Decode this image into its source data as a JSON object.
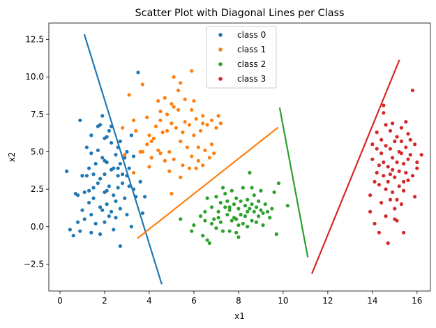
{
  "chart_data": {
    "type": "scatter",
    "title": "Scatter Plot with Diagonal Lines per Class",
    "xlabel": "x1",
    "ylabel": "x2",
    "xlim": [
      -0.5,
      16.6
    ],
    "ylim": [
      -4.3,
      13.6
    ],
    "xticks": [
      0,
      2,
      4,
      6,
      8,
      10,
      12,
      14,
      16
    ],
    "yticks": [
      -2.5,
      0.0,
      2.5,
      5.0,
      7.5,
      10.0,
      12.5
    ],
    "ytick_labels": [
      "−2.5",
      "0.0",
      "2.5",
      "5.0",
      "7.5",
      "10.0",
      "12.5"
    ],
    "legend": {
      "placement": "top-center"
    },
    "series": [
      {
        "name": "class 0",
        "color": "#1f77b4",
        "line": [
          [
            1.1,
            12.8
          ],
          [
            4.55,
            -3.8
          ]
        ],
        "points": [
          [
            0.3,
            3.7
          ],
          [
            0.45,
            -0.2
          ],
          [
            0.6,
            -0.6
          ],
          [
            0.7,
            2.2
          ],
          [
            0.8,
            2.1
          ],
          [
            0.8,
            0.3
          ],
          [
            0.9,
            -0.3
          ],
          [
            0.9,
            7.1
          ],
          [
            1.0,
            1.1
          ],
          [
            1.0,
            3.4
          ],
          [
            1.1,
            2.3
          ],
          [
            1.1,
            0.5
          ],
          [
            1.2,
            3.4
          ],
          [
            1.2,
            5.3
          ],
          [
            1.3,
            3.9
          ],
          [
            1.3,
            1.6
          ],
          [
            1.4,
            -0.4
          ],
          [
            1.4,
            4.9
          ],
          [
            1.4,
            0.8
          ],
          [
            1.5,
            2.6
          ],
          [
            1.5,
            3.5
          ],
          [
            1.5,
            1.9
          ],
          [
            1.6,
            4.2
          ],
          [
            1.6,
            0.2
          ],
          [
            1.7,
            2.9
          ],
          [
            1.7,
            6.7
          ],
          [
            1.7,
            5.1
          ],
          [
            1.8,
            6.8
          ],
          [
            1.8,
            3.2
          ],
          [
            1.8,
            1.3
          ],
          [
            1.9,
            7.4
          ],
          [
            1.9,
            4.6
          ],
          [
            2.0,
            2.3
          ],
          [
            2.0,
            5.9
          ],
          [
            2.0,
            0.3
          ],
          [
            2.0,
            3.5
          ],
          [
            2.1,
            6.0
          ],
          [
            2.1,
            1.5
          ],
          [
            2.1,
            4.3
          ],
          [
            2.2,
            0.7
          ],
          [
            2.2,
            2.7
          ],
          [
            2.2,
            6.4
          ],
          [
            2.3,
            1.0
          ],
          [
            2.3,
            3.8
          ],
          [
            2.3,
            5.6
          ],
          [
            2.4,
            -0.2
          ],
          [
            2.4,
            3.9
          ],
          [
            2.4,
            2.1
          ],
          [
            2.5,
            4.8
          ],
          [
            2.5,
            0.6
          ],
          [
            2.5,
            1.7
          ],
          [
            2.6,
            3.4
          ],
          [
            2.6,
            5.3
          ],
          [
            2.6,
            2.6
          ],
          [
            2.7,
            -1.3
          ],
          [
            2.7,
            4.2
          ],
          [
            2.7,
            1.2
          ],
          [
            2.8,
            2.9
          ],
          [
            2.8,
            3.5
          ],
          [
            2.9,
            4.6
          ],
          [
            2.9,
            1.9
          ],
          [
            3.0,
            3.4
          ],
          [
            3.0,
            5.0
          ],
          [
            3.0,
            0.8
          ],
          [
            3.1,
            2.7
          ],
          [
            3.1,
            3.9
          ],
          [
            3.2,
            6.1
          ],
          [
            3.2,
            0.0
          ],
          [
            3.3,
            2.5
          ],
          [
            3.3,
            4.7
          ],
          [
            3.4,
            2.0
          ],
          [
            3.5,
            10.3
          ],
          [
            3.6,
            3.0
          ],
          [
            3.7,
            0.9
          ],
          [
            3.8,
            2.0
          ],
          [
            1.0,
            3.4
          ],
          [
            1.3,
            2.4
          ],
          [
            2.0,
            4.4
          ],
          [
            2.3,
            6.7
          ],
          [
            2.7,
            5.7
          ],
          [
            1.4,
            6.1
          ],
          [
            2.1,
            2.4
          ],
          [
            1.9,
            1.1
          ],
          [
            1.8,
            -0.5
          ],
          [
            2.6,
            3.9
          ]
        ]
      },
      {
        "name": "class 1",
        "color": "#ff7f0e",
        "line": [
          [
            3.5,
            -0.75
          ],
          [
            9.75,
            6.6
          ]
        ],
        "points": [
          [
            2.8,
            6.6
          ],
          [
            2.9,
            4.8
          ],
          [
            3.1,
            8.8
          ],
          [
            3.3,
            7.1
          ],
          [
            3.3,
            3.6
          ],
          [
            3.4,
            6.4
          ],
          [
            3.6,
            5.0
          ],
          [
            3.7,
            9.5
          ],
          [
            3.7,
            5.0
          ],
          [
            3.9,
            5.5
          ],
          [
            3.9,
            7.3
          ],
          [
            4.0,
            4.0
          ],
          [
            4.0,
            6.1
          ],
          [
            4.1,
            4.6
          ],
          [
            4.1,
            5.7
          ],
          [
            4.2,
            5.9
          ],
          [
            4.3,
            6.7
          ],
          [
            4.4,
            8.4
          ],
          [
            4.4,
            5.1
          ],
          [
            4.5,
            7.1
          ],
          [
            4.5,
            4.9
          ],
          [
            4.6,
            6.3
          ],
          [
            4.7,
            8.6
          ],
          [
            4.7,
            4.4
          ],
          [
            4.8,
            7.5
          ],
          [
            4.9,
            3.7
          ],
          [
            4.9,
            5.0
          ],
          [
            5.0,
            6.9
          ],
          [
            5.0,
            8.2
          ],
          [
            5.0,
            2.2
          ],
          [
            5.1,
            10.0
          ],
          [
            5.1,
            4.5
          ],
          [
            5.2,
            6.6
          ],
          [
            5.3,
            9.1
          ],
          [
            5.3,
            7.8
          ],
          [
            5.4,
            3.3
          ],
          [
            5.5,
            6.3
          ],
          [
            5.5,
            4.1
          ],
          [
            5.6,
            7.0
          ],
          [
            5.6,
            8.5
          ],
          [
            5.7,
            5.3
          ],
          [
            5.8,
            3.9
          ],
          [
            5.8,
            6.8
          ],
          [
            5.9,
            10.4
          ],
          [
            5.9,
            4.7
          ],
          [
            6.0,
            8.4
          ],
          [
            6.0,
            6.1
          ],
          [
            6.1,
            3.9
          ],
          [
            6.1,
            7.2
          ],
          [
            6.2,
            5.3
          ],
          [
            6.2,
            4.4
          ],
          [
            6.3,
            6.4
          ],
          [
            6.4,
            7.4
          ],
          [
            6.4,
            6.9
          ],
          [
            6.5,
            5.1
          ],
          [
            6.6,
            6.8
          ],
          [
            6.7,
            4.6
          ],
          [
            6.8,
            7.1
          ],
          [
            6.8,
            5.5
          ],
          [
            6.9,
            4.9
          ],
          [
            7.0,
            6.6
          ],
          [
            7.1,
            7.4
          ],
          [
            7.2,
            6.9
          ],
          [
            5.4,
            9.6
          ],
          [
            5.1,
            8.0
          ],
          [
            4.5,
            7.7
          ],
          [
            4.8,
            6.4
          ],
          [
            5.9,
            7.8
          ],
          [
            6.4,
            4.1
          ],
          [
            5.4,
            5.7
          ]
        ]
      },
      {
        "name": "class 2",
        "color": "#2ca02c",
        "line": [
          [
            9.85,
            7.9
          ],
          [
            11.1,
            -2.0
          ]
        ],
        "points": [
          [
            5.4,
            0.5
          ],
          [
            5.9,
            -0.3
          ],
          [
            6.0,
            0.1
          ],
          [
            6.3,
            0.7
          ],
          [
            6.4,
            -0.6
          ],
          [
            6.5,
            0.4
          ],
          [
            6.5,
            1.0
          ],
          [
            6.6,
            -0.9
          ],
          [
            6.7,
            -1.1
          ],
          [
            6.8,
            0.2
          ],
          [
            6.8,
            1.3
          ],
          [
            6.9,
            0.5
          ],
          [
            7.0,
            2.0
          ],
          [
            7.0,
            -0.1
          ],
          [
            7.1,
            1.0
          ],
          [
            7.1,
            0.6
          ],
          [
            7.2,
            1.6
          ],
          [
            7.2,
            0.3
          ],
          [
            7.3,
            -0.3
          ],
          [
            7.4,
            1.3
          ],
          [
            7.4,
            2.2
          ],
          [
            7.5,
            0.8
          ],
          [
            7.5,
            1.7
          ],
          [
            7.6,
            -0.3
          ],
          [
            7.6,
            1.1
          ],
          [
            7.7,
            0.4
          ],
          [
            7.7,
            2.4
          ],
          [
            7.8,
            1.5
          ],
          [
            7.8,
            0.6
          ],
          [
            7.9,
            1.9
          ],
          [
            7.9,
            -0.4
          ],
          [
            8.0,
            1.2
          ],
          [
            8.0,
            0.1
          ],
          [
            8.1,
            1.7
          ],
          [
            8.1,
            0.8
          ],
          [
            8.2,
            2.6
          ],
          [
            8.2,
            0.2
          ],
          [
            8.3,
            1.4
          ],
          [
            8.3,
            0.7
          ],
          [
            8.4,
            1.8
          ],
          [
            8.4,
            0.0
          ],
          [
            8.5,
            1.2
          ],
          [
            8.5,
            3.6
          ],
          [
            8.6,
            1.5
          ],
          [
            8.6,
            0.4
          ],
          [
            8.7,
            2.1
          ],
          [
            8.7,
            1.0
          ],
          [
            8.8,
            1.3
          ],
          [
            8.8,
            0.3
          ],
          [
            8.9,
            1.7
          ],
          [
            8.9,
            0.7
          ],
          [
            9.0,
            1.1
          ],
          [
            9.0,
            2.4
          ],
          [
            9.1,
            0.9
          ],
          [
            9.1,
            0.1
          ],
          [
            9.2,
            1.5
          ],
          [
            9.3,
            1.0
          ],
          [
            9.4,
            0.6
          ],
          [
            9.5,
            1.2
          ],
          [
            9.6,
            2.3
          ],
          [
            9.7,
            -0.5
          ],
          [
            9.8,
            2.9
          ],
          [
            10.2,
            1.4
          ],
          [
            8.0,
            -0.7
          ],
          [
            7.3,
            2.6
          ],
          [
            6.6,
            1.9
          ],
          [
            8.6,
            2.6
          ],
          [
            7.9,
            0.5
          ],
          [
            8.4,
            1.0
          ],
          [
            7.6,
            1.3
          ]
        ]
      },
      {
        "name": "class 3",
        "color": "#d62728",
        "line": [
          [
            11.3,
            -3.1
          ],
          [
            15.2,
            11.1
          ]
        ],
        "points": [
          [
            13.9,
            2.1
          ],
          [
            13.9,
            1.0
          ],
          [
            14.0,
            5.5
          ],
          [
            14.0,
            4.5
          ],
          [
            14.1,
            3.0
          ],
          [
            14.1,
            0.2
          ],
          [
            14.2,
            5.2
          ],
          [
            14.2,
            3.6
          ],
          [
            14.3,
            4.1
          ],
          [
            14.3,
            -0.4
          ],
          [
            14.3,
            2.8
          ],
          [
            14.4,
            5.8
          ],
          [
            14.4,
            1.6
          ],
          [
            14.5,
            3.4
          ],
          [
            14.5,
            7.6
          ],
          [
            14.5,
            4.3
          ],
          [
            14.6,
            2.5
          ],
          [
            14.6,
            6.8
          ],
          [
            14.6,
            0.7
          ],
          [
            14.7,
            4.0
          ],
          [
            14.7,
            -1.1
          ],
          [
            14.7,
            3.0
          ],
          [
            14.8,
            5.2
          ],
          [
            14.8,
            1.8
          ],
          [
            14.8,
            6.4
          ],
          [
            14.9,
            3.8
          ],
          [
            14.9,
            2.3
          ],
          [
            14.9,
            4.6
          ],
          [
            15.0,
            5.7
          ],
          [
            15.0,
            1.2
          ],
          [
            15.0,
            3.3
          ],
          [
            15.1,
            6.0
          ],
          [
            15.1,
            4.3
          ],
          [
            15.1,
            0.4
          ],
          [
            15.2,
            2.7
          ],
          [
            15.2,
            5.0
          ],
          [
            15.2,
            3.7
          ],
          [
            15.3,
            4.9
          ],
          [
            15.3,
            1.5
          ],
          [
            15.3,
            6.6
          ],
          [
            15.4,
            4.2
          ],
          [
            15.4,
            2.4
          ],
          [
            15.4,
            -0.4
          ],
          [
            15.5,
            5.3
          ],
          [
            15.5,
            3.6
          ],
          [
            15.5,
            7.0
          ],
          [
            15.6,
            4.5
          ],
          [
            15.6,
            3.1
          ],
          [
            15.7,
            5.8
          ],
          [
            15.7,
            4.8
          ],
          [
            15.8,
            9.1
          ],
          [
            15.8,
            3.4
          ],
          [
            15.9,
            2.0
          ],
          [
            15.9,
            5.5
          ],
          [
            16.0,
            4.3
          ],
          [
            16.0,
            3.9
          ],
          [
            16.2,
            4.8
          ],
          [
            14.6,
            5.4
          ],
          [
            14.9,
            6.9
          ],
          [
            15.1,
            1.8
          ],
          [
            14.4,
            4.9
          ],
          [
            15.0,
            0.5
          ],
          [
            14.2,
            6.3
          ],
          [
            15.6,
            6.2
          ],
          [
            14.8,
            3.5
          ],
          [
            15.3,
            5.7
          ],
          [
            14.5,
            8.1
          ],
          [
            15.4,
            3.0
          ]
        ]
      }
    ]
  }
}
